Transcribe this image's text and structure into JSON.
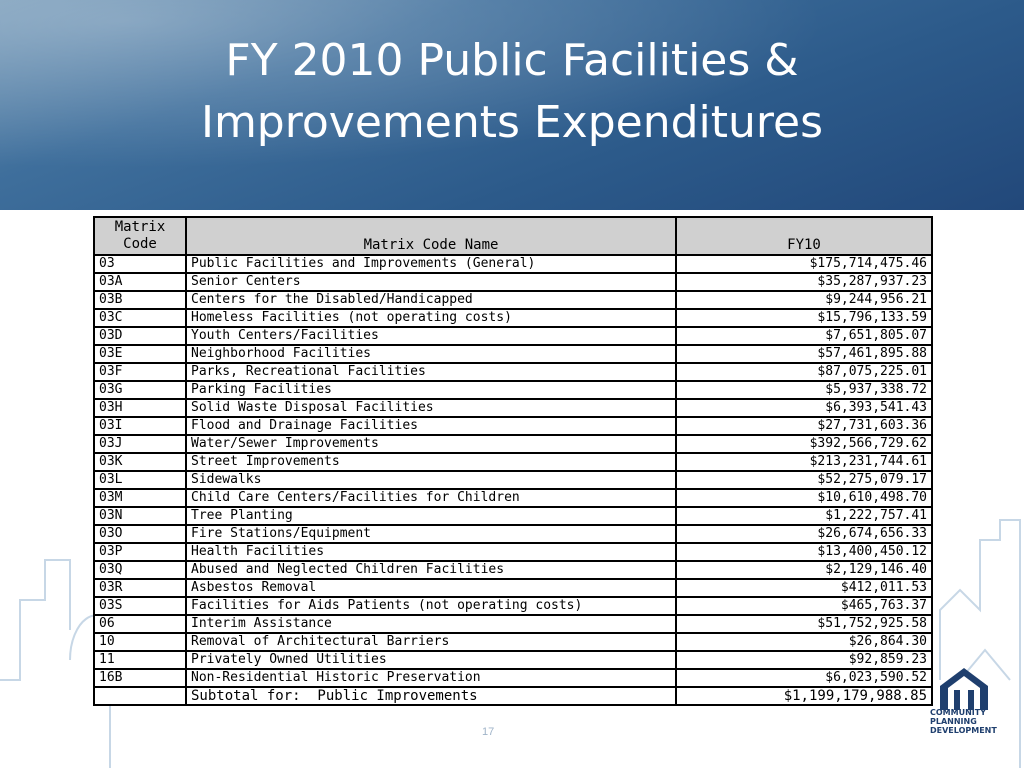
{
  "slide": {
    "title_line1": "FY 2010 Public Facilities &",
    "title_line2": "Improvements Expenditures",
    "page_number": "17"
  },
  "table": {
    "headers": {
      "code": "Matrix Code",
      "code_line1": "Matrix",
      "code_line2": "Code",
      "name": "Matrix Code Name",
      "fy": "FY10"
    },
    "rows": [
      {
        "code": "03",
        "name": "Public Facilities and Improvements (General)",
        "amount": "$175,714,475.46"
      },
      {
        "code": "03A",
        "name": "Senior Centers",
        "amount": "$35,287,937.23"
      },
      {
        "code": "03B",
        "name": "Centers for the Disabled/Handicapped",
        "amount": "$9,244,956.21"
      },
      {
        "code": "03C",
        "name": "Homeless Facilities (not operating costs)",
        "amount": "$15,796,133.59"
      },
      {
        "code": "03D",
        "name": "Youth Centers/Facilities",
        "amount": "$7,651,805.07"
      },
      {
        "code": "03E",
        "name": "Neighborhood Facilities",
        "amount": "$57,461,895.88"
      },
      {
        "code": "03F",
        "name": "Parks, Recreational Facilities",
        "amount": "$87,075,225.01"
      },
      {
        "code": "03G",
        "name": "Parking Facilities",
        "amount": "$5,937,338.72"
      },
      {
        "code": "03H",
        "name": "Solid Waste Disposal Facilities",
        "amount": "$6,393,541.43"
      },
      {
        "code": "03I",
        "name": "Flood and Drainage Facilities",
        "amount": "$27,731,603.36"
      },
      {
        "code": "03J",
        "name": "Water/Sewer Improvements",
        "amount": "$392,566,729.62"
      },
      {
        "code": "03K",
        "name": "Street Improvements",
        "amount": "$213,231,744.61"
      },
      {
        "code": "03L",
        "name": "Sidewalks",
        "amount": "$52,275,079.17"
      },
      {
        "code": "03M",
        "name": "Child Care Centers/Facilities for Children",
        "amount": "$10,610,498.70"
      },
      {
        "code": "03N",
        "name": "Tree Planting",
        "amount": "$1,222,757.41"
      },
      {
        "code": "03O",
        "name": "Fire Stations/Equipment",
        "amount": "$26,674,656.33"
      },
      {
        "code": "03P",
        "name": "Health Facilities",
        "amount": "$13,400,450.12"
      },
      {
        "code": "03Q",
        "name": "Abused and Neglected Children Facilities",
        "amount": "$2,129,146.40"
      },
      {
        "code": "03R",
        "name": "Asbestos Removal",
        "amount": "$412,011.53"
      },
      {
        "code": "03S",
        "name": "Facilities for Aids Patients (not operating costs)",
        "amount": "$465,763.37"
      },
      {
        "code": "06",
        "name": "Interim Assistance",
        "amount": "$51,752,925.58"
      },
      {
        "code": "10",
        "name": "Removal of Architectural Barriers",
        "amount": "$26,864.30"
      },
      {
        "code": "11",
        "name": "Privately Owned Utilities",
        "amount": "$92,859.23"
      },
      {
        "code": "16B",
        "name": "Non-Residential Historic Preservation",
        "amount": "$6,023,590.52"
      }
    ],
    "subtotal": {
      "label": "Subtotal for:  Public Improvements",
      "amount": "$1,199,179,988.85"
    }
  },
  "logo": {
    "line1": "COMMUNITY",
    "line2": "PLANNING",
    "line3": "DEVELOPMENT",
    "icon": "house-logo-icon"
  },
  "colors": {
    "header_dark": "#22487a",
    "header_light": "#6f95b5",
    "table_header_bg": "#d0d0d0",
    "skyline": "#c7d7e6"
  }
}
